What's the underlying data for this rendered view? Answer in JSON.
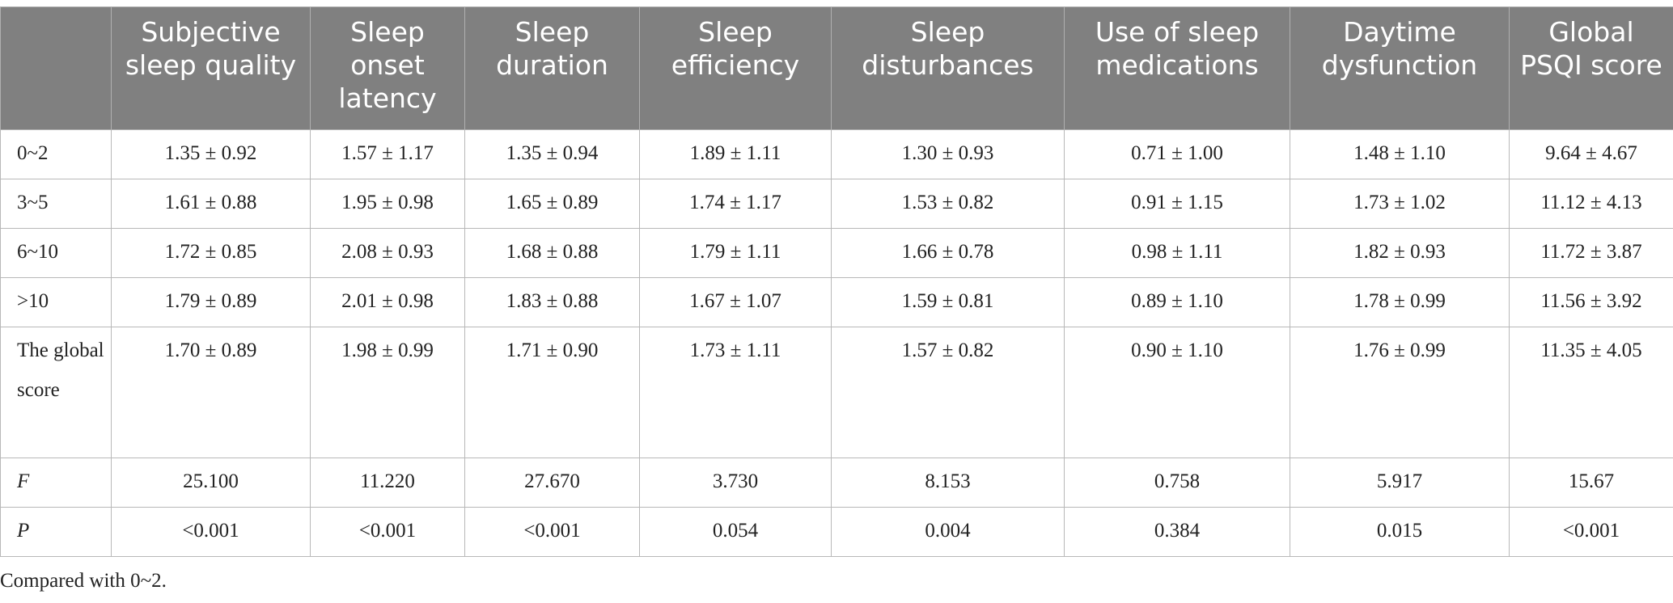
{
  "table": {
    "headers": [
      "",
      "Subjective sleep quality",
      "Sleep onset latency",
      "Sleep duration",
      "Sleep efficiency",
      "Sleep disturbances",
      "Use of sleep medications",
      "Daytime dysfunction",
      "Global PSQI score"
    ],
    "rows": [
      {
        "label": "0~2",
        "cells": [
          "1.35 ± 0.92",
          "1.57 ± 1.17",
          "1.35 ± 0.94",
          "1.89 ± 1.11",
          "1.30 ± 0.93",
          "0.71 ± 1.00",
          "1.48 ± 1.10",
          "9.64 ± 4.67"
        ]
      },
      {
        "label": "3~5",
        "cells": [
          "1.61 ± 0.88",
          "1.95 ± 0.98",
          "1.65 ± 0.89",
          "1.74 ± 1.17",
          "1.53 ± 0.82",
          "0.91 ± 1.15",
          "1.73 ± 1.02",
          "11.12 ± 4.13"
        ]
      },
      {
        "label": "6~10",
        "cells": [
          "1.72 ± 0.85",
          "2.08 ± 0.93",
          "1.68 ± 0.88",
          "1.79 ± 1.11",
          "1.66 ± 0.78",
          "0.98 ± 1.11",
          "1.82 ± 0.93",
          "11.72 ± 3.87"
        ]
      },
      {
        "label": ">10",
        "cells": [
          "1.79 ± 0.89",
          "2.01 ± 0.98",
          "1.83 ± 0.88",
          "1.67 ± 1.07",
          "1.59 ± 0.81",
          "0.89 ± 1.10",
          "1.78 ± 0.99",
          "11.56 ± 3.92"
        ]
      },
      {
        "label": "The global score",
        "cells": [
          "1.70 ± 0.89",
          "1.98 ± 0.99",
          "1.71 ± 0.90",
          "1.73 ± 1.11",
          "1.57 ± 0.82",
          "0.90 ± 1.10",
          "1.76 ± 0.99",
          "11.35 ± 4.05"
        ]
      },
      {
        "label": "F",
        "cells": [
          "25.100",
          "11.220",
          "27.670",
          "3.730",
          "8.153",
          "0.758",
          "5.917",
          "15.67"
        ]
      },
      {
        "label": "P",
        "cells": [
          "<0.001",
          "<0.001",
          "<0.001",
          "0.054",
          "0.004",
          "0.384",
          "0.015",
          "<0.001"
        ]
      }
    ]
  },
  "footnote": "Compared with 0~2."
}
